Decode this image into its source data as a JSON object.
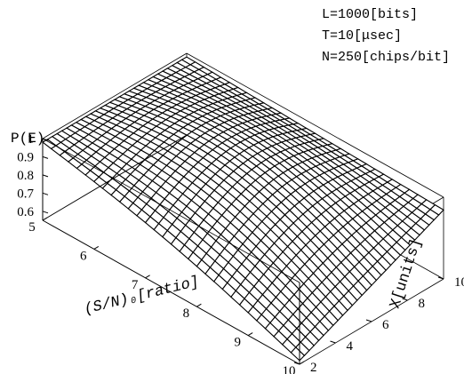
{
  "chart_data": {
    "type": "surface",
    "title": "",
    "zlabel": "P(E)",
    "xlabel": "(S/N)₀[ratio]",
    "ylabel": "X[units]",
    "parameters": [
      "L=1000[bits]",
      "T=10[μsec]",
      "N=250[chips/bit]"
    ],
    "x_range": [
      5,
      10
    ],
    "y_range": [
      2,
      10
    ],
    "z_range": [
      0.55,
      1.0
    ],
    "x_ticks": [
      "5",
      "6",
      "7",
      "8",
      "9",
      "10"
    ],
    "y_ticks": [
      "2",
      "4",
      "6",
      "8",
      "10"
    ],
    "z_ticks": [
      "1",
      "0.9",
      "0.8",
      "0.7",
      "0.6"
    ],
    "grid_lines": 30,
    "corner_values": [
      {
        "x": 5,
        "y": 2,
        "z": 0.98
      },
      {
        "x": 5,
        "y": 10,
        "z": 0.98
      },
      {
        "x": 10,
        "y": 2,
        "z": 0.57
      },
      {
        "x": 10,
        "y": 10,
        "z": 0.93
      }
    ]
  }
}
